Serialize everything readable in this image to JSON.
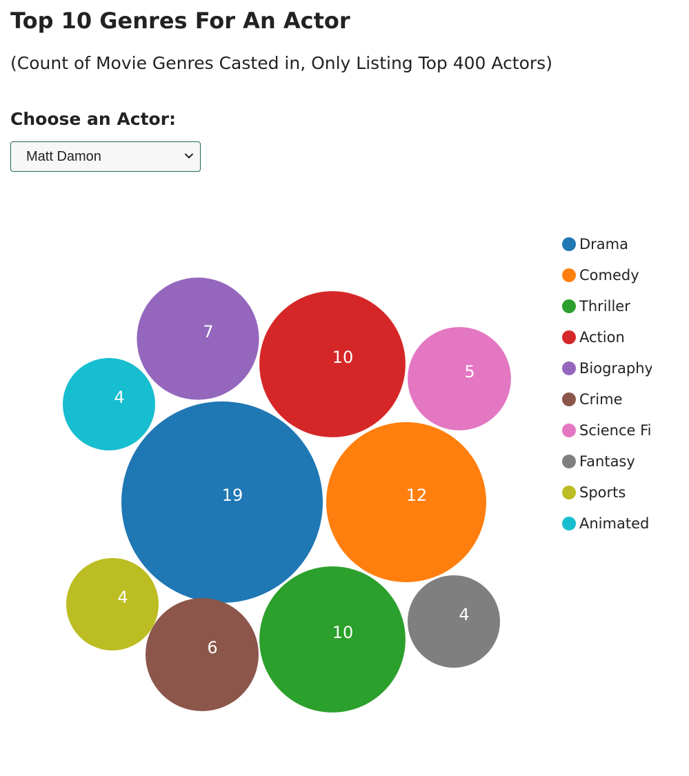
{
  "page": {
    "title": "Top 10 Genres For An Actor",
    "subtitle": "(Count of Movie Genres Casted in, Only Listing Top 400 Actors)"
  },
  "actor_select": {
    "label": "Choose an Actor:",
    "selected": "Matt Damon"
  },
  "chart_data": {
    "type": "bubble",
    "title": "Top 10 Genres For An Actor",
    "subtitle": "(Count of Movie Genres Casted in, Only Listing Top 400 Actors)",
    "legend_position": "right",
    "series": [
      {
        "name": "Drama",
        "value": 19,
        "color": "#1f77b4"
      },
      {
        "name": "Comedy",
        "value": 12,
        "color": "#ff7f0e"
      },
      {
        "name": "Thriller",
        "value": 10,
        "color": "#2ca02c"
      },
      {
        "name": "Action",
        "value": 10,
        "color": "#d62728"
      },
      {
        "name": "Biography",
        "value": 7,
        "color": "#9467bd"
      },
      {
        "name": "Crime",
        "value": 6,
        "color": "#8c564b"
      },
      {
        "name": "Science Fiction",
        "value": 5,
        "color": "#e377c2"
      },
      {
        "name": "Fantasy",
        "value": 4,
        "color": "#7f7f7f"
      },
      {
        "name": "Sports",
        "value": 4,
        "color": "#bcbd22"
      },
      {
        "name": "Animated",
        "value": 4,
        "color": "#17becf"
      }
    ]
  }
}
